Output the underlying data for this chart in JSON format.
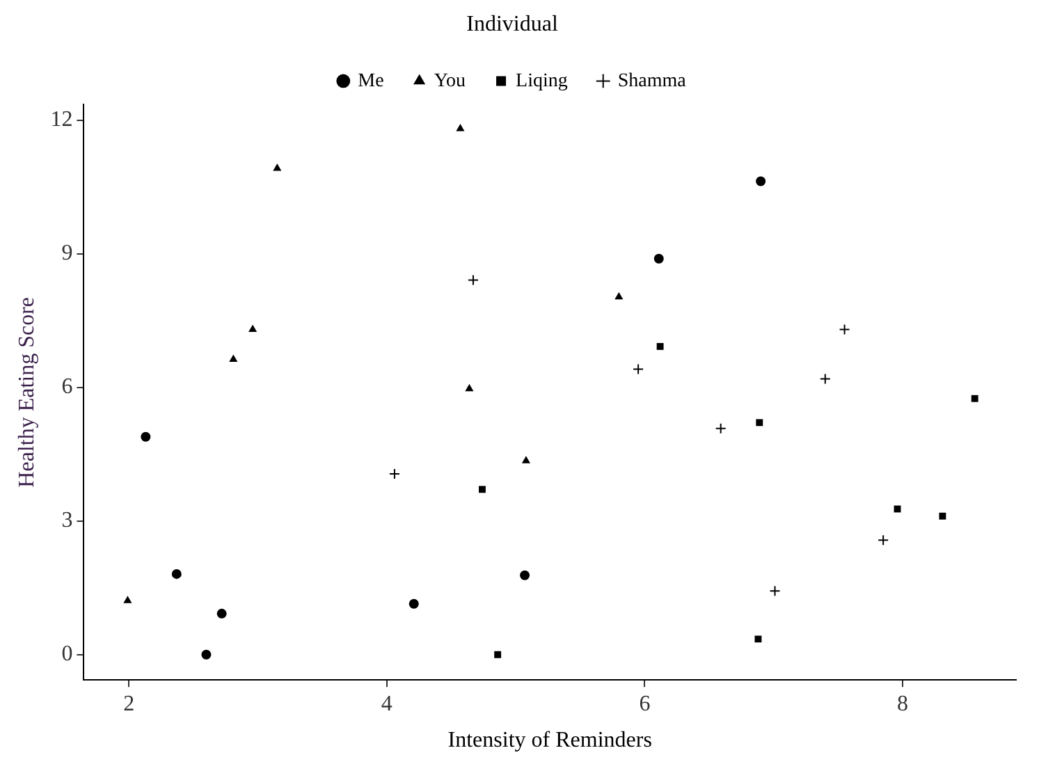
{
  "chart_data": {
    "type": "scatter",
    "xlabel": "Intensity of Reminders",
    "ylabel": "Healthy Eating Score",
    "legend_title": "Individual",
    "legend": "top",
    "grid": false,
    "xlim": [
      1.65,
      8.88
    ],
    "xticks": [
      2,
      4,
      6,
      8
    ],
    "ylim": [
      -0.57,
      12.35
    ],
    "yticks": [
      0,
      3,
      6,
      9,
      12
    ],
    "series": [
      {
        "name": "Me",
        "color": "#000000",
        "marker": "circle",
        "x": [
          2.13,
          2.37,
          2.6,
          2.72,
          4.21,
          5.07,
          6.11,
          6.9
        ],
        "values": [
          4.89,
          1.81,
          0,
          0.92,
          1.14,
          1.78,
          8.89,
          10.63
        ]
      },
      {
        "name": "You",
        "color": "#000000",
        "marker": "triangle",
        "x": [
          1.99,
          2.81,
          2.96,
          3.15,
          4.57,
          4.64,
          5.08,
          5.8
        ],
        "values": [
          1.21,
          6.63,
          7.3,
          10.92,
          11.81,
          5.97,
          4.35,
          8.03
        ]
      },
      {
        "name": "Liqing",
        "color": "#000000",
        "marker": "square",
        "x": [
          4.74,
          4.86,
          6.12,
          6.89,
          6.88,
          7.96,
          8.31,
          8.56
        ],
        "values": [
          3.71,
          0,
          6.92,
          5.21,
          0.35,
          3.27,
          3.11,
          5.75
        ]
      },
      {
        "name": "Shamma",
        "color": "#000000",
        "marker": "cross",
        "x": [
          4.06,
          4.67,
          5.95,
          6.59,
          7.01,
          7.4,
          7.55,
          7.85
        ],
        "values": [
          4.06,
          8.41,
          6.41,
          5.08,
          1.43,
          6.19,
          7.3,
          2.57
        ]
      }
    ]
  }
}
